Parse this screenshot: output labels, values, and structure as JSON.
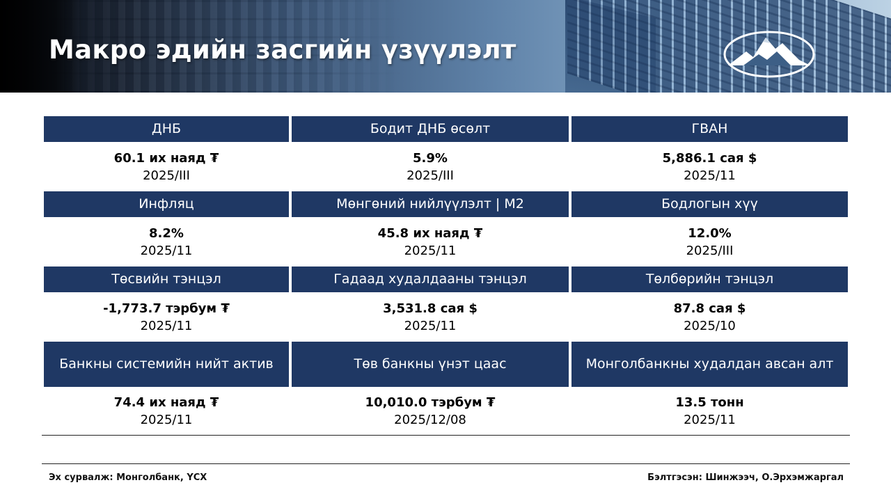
{
  "page_title": "Макро эдийн засгийн үзүүлэлт",
  "logo_icon": "mountain-logo-icon",
  "colors": {
    "header_bg": "#1f3864",
    "header_text": "#ffffff",
    "value_text": "#000000"
  },
  "indicators": [
    {
      "label": "ДНБ",
      "value": "60.1 их наяд ₮",
      "period": "2025/III"
    },
    {
      "label": "Бодит ДНБ өсөлт",
      "value": "5.9%",
      "period": "2025/III"
    },
    {
      "label": "ГВАН",
      "value": "5,886.1 сая $",
      "period": "2025/11"
    },
    {
      "label": "Инфляц",
      "value": "8.2%",
      "period": "2025/11"
    },
    {
      "label": "Мөнгөний нийлүүлэлт | М2",
      "value": "45.8 их наяд ₮",
      "period": "2025/11"
    },
    {
      "label": "Бодлогын хүү",
      "value": "12.0%",
      "period": "2025/III"
    },
    {
      "label": "Төсвийн тэнцэл",
      "value": "-1,773.7 тэрбум ₮",
      "period": "2025/11"
    },
    {
      "label": "Гадаад худалдааны тэнцэл",
      "value": "3,531.8 сая $",
      "period": "2025/11"
    },
    {
      "label": "Төлбөрийн тэнцэл",
      "value": "87.8 сая $",
      "period": "2025/10"
    },
    {
      "label": "Банкны системийн нийт актив",
      "value": "74.4 их наяд ₮",
      "period": "2025/11"
    },
    {
      "label": "Төв банкны үнэт цаас",
      "value": "10,010.0 тэрбум ₮",
      "period": "2025/12/08"
    },
    {
      "label": "Монголбанкны худалдан авсан алт",
      "value": "13.5 тонн",
      "period": "2025/11"
    }
  ],
  "footer": {
    "source": "Эх сурвалж: Монголбанк, ҮСХ",
    "prepared_by": "Бэлтгэсэн: Шинжээч, О.Эрхэмжаргал"
  }
}
